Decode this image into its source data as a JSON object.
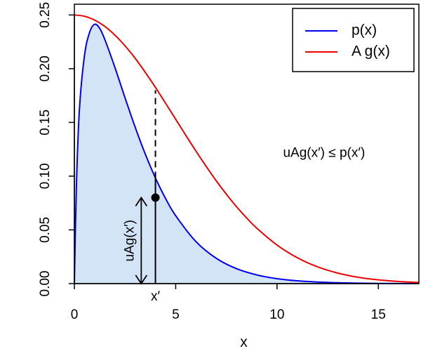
{
  "chart_data": {
    "type": "line",
    "xlabel": "x",
    "ylabel": "",
    "title": "",
    "xlim": [
      0,
      17
    ],
    "ylim": [
      0,
      0.26
    ],
    "x_ticks": [
      0,
      5,
      10,
      15
    ],
    "y_ticks": [
      0.0,
      0.05,
      0.1,
      0.15,
      0.2,
      0.25
    ],
    "x_tick_labels": [
      "0",
      "5",
      "10",
      "15"
    ],
    "y_tick_labels": [
      "0.00",
      "0.05",
      "0.10",
      "0.15",
      "0.20",
      "0.25"
    ],
    "grid": false,
    "legend_position": "top-right",
    "series": [
      {
        "name": "p(x)",
        "color": "#0000ee",
        "x": [
          0,
          0.1,
          0.25,
          0.5,
          0.75,
          1,
          1.25,
          1.5,
          2,
          2.5,
          3,
          3.5,
          4,
          4.5,
          5,
          6,
          7,
          8,
          9,
          10,
          11,
          12,
          13,
          14,
          15,
          16,
          17
        ],
        "y": [
          0,
          0.0905,
          0.1622,
          0.2123,
          0.2337,
          0.2413,
          0.2376,
          0.2273,
          0.2012,
          0.1729,
          0.1456,
          0.1205,
          0.0983,
          0.0792,
          0.0632,
          0.0391,
          0.0236,
          0.0139,
          0.0081,
          0.0046,
          0.0026,
          0.0015,
          0.0008,
          0.0004,
          0.0002,
          0.0001,
          0.0001
        ],
        "fill": "#d4e4f7"
      },
      {
        "name": "A g(x)",
        "color": "#ee0000",
        "x": [
          0,
          0.5,
          1,
          1.5,
          2,
          2.5,
          3,
          3.5,
          4,
          4.5,
          5,
          5.5,
          6,
          6.5,
          7,
          7.5,
          8,
          8.5,
          9,
          10,
          11,
          12,
          13,
          14,
          15,
          16,
          17
        ],
        "y": [
          0.25,
          0.2488,
          0.2452,
          0.2394,
          0.2313,
          0.2213,
          0.2097,
          0.1966,
          0.1826,
          0.1679,
          0.153,
          0.138,
          0.1233,
          0.1092,
          0.0957,
          0.0832,
          0.0716,
          0.0611,
          0.0516,
          0.0359,
          0.0241,
          0.0156,
          0.0098,
          0.0059,
          0.0035,
          0.002,
          0.0011
        ]
      }
    ],
    "annotations": {
      "sample_x": 4,
      "sample_x_label": "x′",
      "point_y": 0.08,
      "p_at_sample": 0.0983,
      "envelope_at_sample": 0.18,
      "inequality_text": "uAg(x′) ≤ p(x′)",
      "inequality_x": 10.3,
      "inequality_y": 0.118,
      "arrow_x": 3.3,
      "arrow_label": "uAg(x′)"
    }
  }
}
